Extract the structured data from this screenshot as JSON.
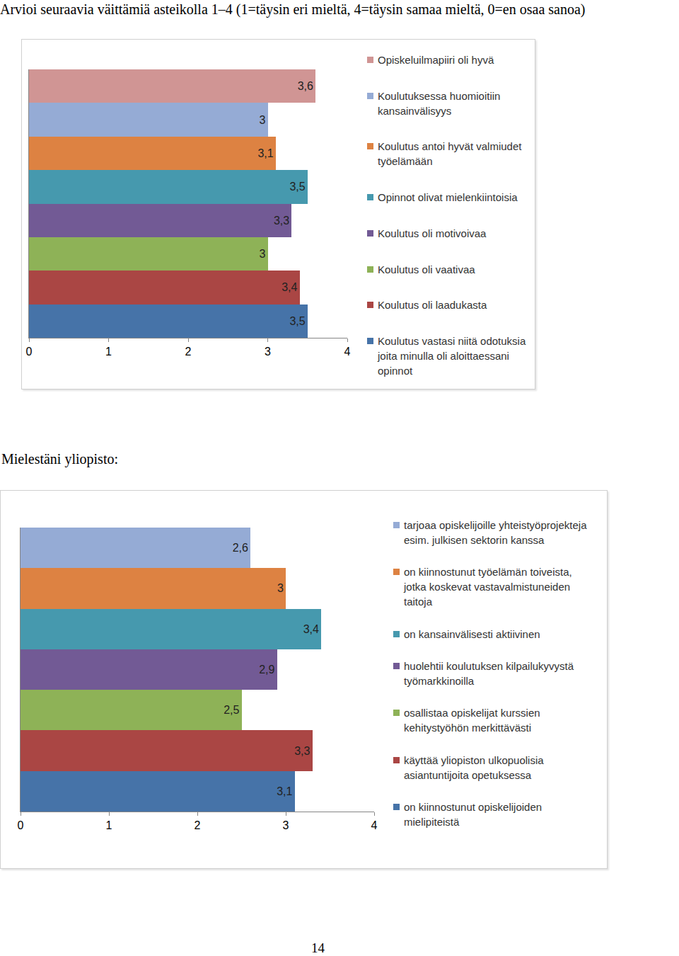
{
  "page_number": 14,
  "chart_data": [
    {
      "type": "bar",
      "orientation": "horizontal",
      "title": "Arvioi seuraavia väittämiä asteikolla 1–4 (1=täysin eri mieltä, 4=täysin samaa mieltä, 0=en osaa sanoa)",
      "categories": [
        null
      ],
      "series": [
        {
          "name": "Opiskeluilmapiiri oli hyvä",
          "color": "#d09594",
          "values": [
            3.6
          ],
          "value_labels": [
            "3,6"
          ]
        },
        {
          "name": "Koulutuksessa huomioitiin kansainvälisyys",
          "color": "#95abd5",
          "values": [
            3
          ],
          "value_labels": [
            "3"
          ]
        },
        {
          "name": "Koulutus antoi hyvät valmiudet työelämään",
          "color": "#dd8242",
          "values": [
            3.1
          ],
          "value_labels": [
            "3,1"
          ]
        },
        {
          "name": "Opinnot olivat mielenkiintoisia",
          "color": "#4699ae",
          "values": [
            3.5
          ],
          "value_labels": [
            "3,5"
          ]
        },
        {
          "name": "Koulutus oli motivoivaa",
          "color": "#725a95",
          "values": [
            3.3
          ],
          "value_labels": [
            "3,3"
          ]
        },
        {
          "name": "Koulutus oli vaativaa",
          "color": "#8eb257",
          "values": [
            3
          ],
          "value_labels": [
            "3"
          ]
        },
        {
          "name": "Koulutus oli laadukasta",
          "color": "#aa4644",
          "values": [
            3.4
          ],
          "value_labels": [
            "3,4"
          ]
        },
        {
          "name": "Koulutus vastasi niitä odotuksia joita minulla oli aloittaessani opinnot",
          "color": "#4673a8",
          "values": [
            3.5
          ],
          "value_labels": [
            "3,5"
          ]
        }
      ],
      "xlim": [
        0,
        4
      ],
      "xticks": [
        0,
        1,
        2,
        3,
        4
      ],
      "grid": false,
      "data_labels": true,
      "tick_labels": "x",
      "legend": "right"
    },
    {
      "type": "bar",
      "orientation": "horizontal",
      "title": "Mielestäni yliopisto:",
      "categories": [
        null
      ],
      "series": [
        {
          "name": "tarjoaa opiskelijoille yhteistyöprojekteja esim. julkisen sektorin kanssa",
          "color": "#95abd5",
          "values": [
            2.6
          ],
          "value_labels": [
            "2,6"
          ]
        },
        {
          "name": "on kiinnostunut työelämän toiveista, jotka koskevat vastavalmistuneiden taitoja",
          "color": "#dd8242",
          "values": [
            3
          ],
          "value_labels": [
            "3"
          ]
        },
        {
          "name": "on kansainvälisesti aktiivinen",
          "color": "#4699ae",
          "values": [
            3.4
          ],
          "value_labels": [
            "3,4"
          ]
        },
        {
          "name": "huolehtii koulutuksen kilpailukyvystä työmarkkinoilla",
          "color": "#725a95",
          "values": [
            2.9
          ],
          "value_labels": [
            "2,9"
          ]
        },
        {
          "name": "osallistaa opiskelijat kurssien kehitystyöhön merkittävästi",
          "color": "#8eb257",
          "values": [
            2.5
          ],
          "value_labels": [
            "2,5"
          ]
        },
        {
          "name": "käyttää yliopiston ulkopuolisia asiantuntijoita opetuksessa",
          "color": "#aa4644",
          "values": [
            3.3
          ],
          "value_labels": [
            "3,3"
          ]
        },
        {
          "name": "on kiinnostunut opiskelijoiden mielipiteistä",
          "color": "#4673a8",
          "values": [
            3.1
          ],
          "value_labels": [
            "3,1"
          ]
        }
      ],
      "xlim": [
        0,
        4
      ],
      "xticks": [
        0,
        1,
        2,
        3,
        4
      ],
      "grid": false,
      "data_labels": true,
      "tick_labels": "x",
      "legend": "right"
    }
  ]
}
